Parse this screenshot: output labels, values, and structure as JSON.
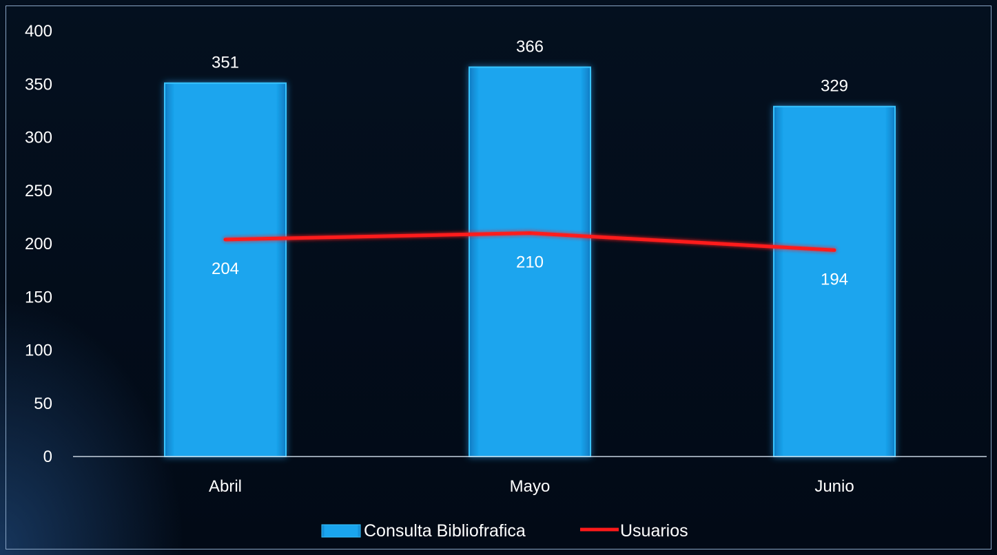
{
  "colors": {
    "background": "#050d1c",
    "bar": "#1aa5ee",
    "bar_edge": "#38c4ff",
    "line": "#ff1a1a",
    "axis": "#c8d3e0",
    "text": "#ffffff"
  },
  "chart_data": {
    "type": "bar",
    "categories": [
      "Abril",
      "Mayo",
      "Junio"
    ],
    "series": [
      {
        "name": "Consulta Bibliofrafica",
        "kind": "bar",
        "values": [
          351,
          366,
          329
        ],
        "labels": [
          "351",
          "366",
          "329"
        ]
      },
      {
        "name": "Usuarios",
        "kind": "line",
        "values": [
          204,
          210,
          194
        ],
        "labels": [
          "204",
          "210",
          "194"
        ]
      }
    ],
    "ylim": [
      0,
      400
    ],
    "yticks": [
      "0",
      "50",
      "100",
      "150",
      "200",
      "250",
      "300",
      "350",
      "400"
    ],
    "grid": false,
    "legend": "bottom",
    "title": "",
    "xlabel": "",
    "ylabel": ""
  }
}
